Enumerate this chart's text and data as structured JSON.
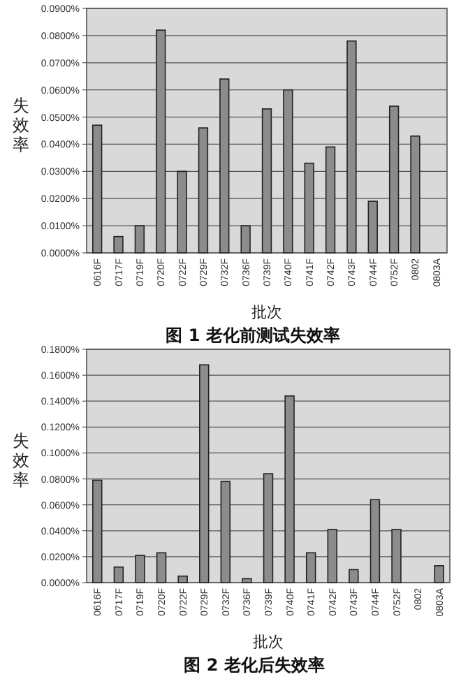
{
  "chart_data": [
    {
      "type": "bar",
      "title": "图 1 老化前测试失效率",
      "xlabel": "批次",
      "ylabel": "失效率",
      "categories": [
        "0616F",
        "0717F",
        "0719F",
        "0720F",
        "0722F",
        "0729F",
        "0732F",
        "0736F",
        "0739F",
        "0740F",
        "0741F",
        "0742F",
        "0743F",
        "0744F",
        "0752F",
        "0802",
        "0803A"
      ],
      "values": [
        0.047,
        0.006,
        0.01,
        0.082,
        0.03,
        0.046,
        0.064,
        0.01,
        0.053,
        0.06,
        0.033,
        0.039,
        0.078,
        0.019,
        0.054,
        0.043,
        0
      ],
      "color": "#8c8c8c",
      "ylim": [
        0,
        0.09
      ],
      "yticks": [
        {
          "value": 0,
          "label": "0.0000%"
        },
        {
          "value": 0.01,
          "label": "0.0100%"
        },
        {
          "value": 0.02,
          "label": "0.0200%"
        },
        {
          "value": 0.03,
          "label": "0.0300%"
        },
        {
          "value": 0.04,
          "label": "0.0400%"
        },
        {
          "value": 0.05,
          "label": "0.0500%"
        },
        {
          "value": 0.06,
          "label": "0.0600%"
        },
        {
          "value": 0.07,
          "label": "0.0700%"
        },
        {
          "value": 0.08,
          "label": "0.0800%"
        },
        {
          "value": 0.09,
          "label": "0.0900%"
        }
      ],
      "grid": "y"
    },
    {
      "type": "bar",
      "title": "图 2 老化后失效率",
      "xlabel": "批次",
      "ylabel": "失效率",
      "categories": [
        "0616F",
        "0717F",
        "0719F",
        "0720F",
        "0722F",
        "0729F",
        "0732F",
        "0736F",
        "0739F",
        "0740F",
        "0741F",
        "0742F",
        "0743F",
        "0744F",
        "0752F",
        "0802",
        "0803A"
      ],
      "values": [
        0.079,
        0.012,
        0.021,
        0.023,
        0.005,
        0.168,
        0.078,
        0.003,
        0.084,
        0.144,
        0.023,
        0.041,
        0.01,
        0.064,
        0.041,
        0,
        0.013
      ],
      "color": "#8c8c8c",
      "ylim": [
        0,
        0.18
      ],
      "yticks": [
        {
          "value": 0,
          "label": "0.0000%"
        },
        {
          "value": 0.02,
          "label": "0.0200%"
        },
        {
          "value": 0.04,
          "label": "0.0400%"
        },
        {
          "value": 0.06,
          "label": "0.0600%"
        },
        {
          "value": 0.08,
          "label": "0.0800%"
        },
        {
          "value": 0.1,
          "label": "0.1000%"
        },
        {
          "value": 0.12,
          "label": "0.1200%"
        },
        {
          "value": 0.14,
          "label": "0.1400%"
        },
        {
          "value": 0.16,
          "label": "0.1600%"
        },
        {
          "value": 0.18,
          "label": "0.1800%"
        }
      ],
      "grid": "y"
    }
  ]
}
